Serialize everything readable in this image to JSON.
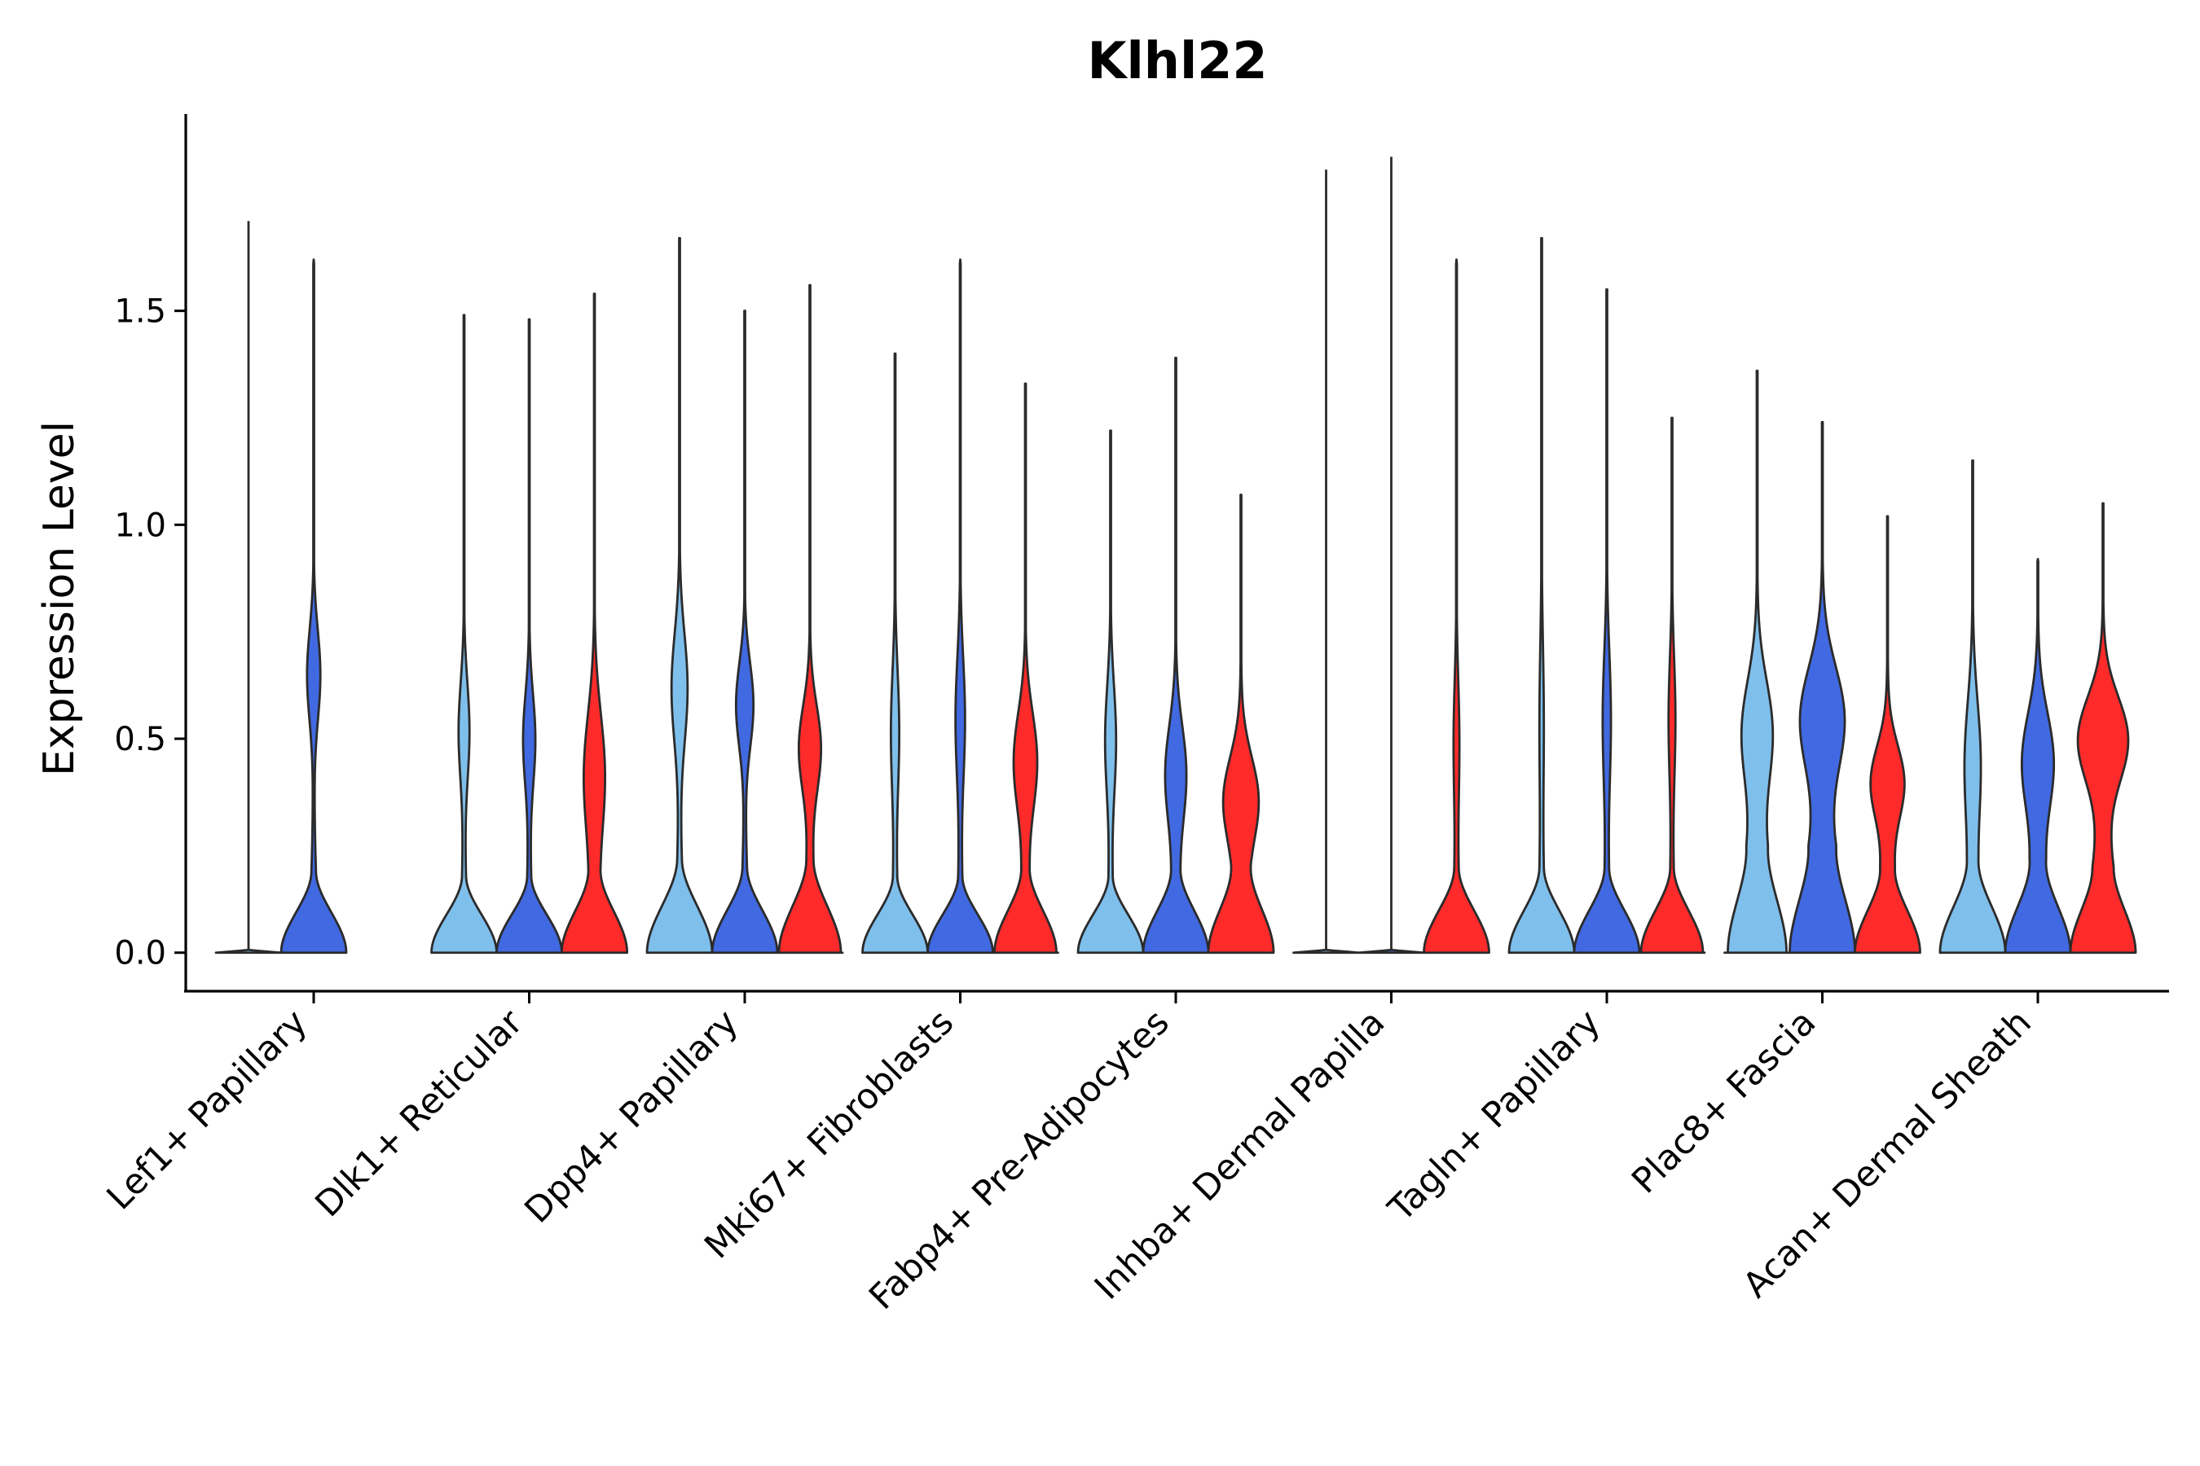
{
  "chart_data": {
    "type": "violin",
    "title": "Klhl22",
    "xlabel": "",
    "ylabel": "Expression Level",
    "ylim": [
      -0.09,
      1.96
    ],
    "yticks": [
      0.0,
      0.5,
      1.0,
      1.5
    ],
    "ytick_labels": [
      "0.0",
      "0.5",
      "1.0",
      "1.5"
    ],
    "colors": {
      "condition_1": "#7fbfec",
      "condition_2": "#4169e1",
      "condition_3": "#ff2a2a",
      "outline": "#2b2b2b"
    },
    "categories": [
      {
        "label": "Lef1+ Papillary",
        "violins": [
          {
            "color": "condition_1",
            "max": 1.71,
            "flat": true
          },
          {
            "color": "condition_2",
            "max": 1.62,
            "base_width": 1.0,
            "neck": 0.07,
            "neck_y": 0.19,
            "upper_width": 0.2,
            "upper_center": 0.65,
            "upper_spread": 0.15
          },
          null
        ]
      },
      {
        "label": "Dlk1+ Reticular",
        "violins": [
          {
            "color": "condition_1",
            "max": 1.49,
            "base_width": 1.0,
            "neck": 0.06,
            "neck_y": 0.18,
            "upper_width": 0.16,
            "upper_center": 0.52,
            "upper_spread": 0.16
          },
          {
            "color": "condition_2",
            "max": 1.48,
            "base_width": 1.0,
            "neck": 0.06,
            "neck_y": 0.18,
            "upper_width": 0.18,
            "upper_center": 0.5,
            "upper_spread": 0.15
          },
          {
            "color": "condition_3",
            "max": 1.54,
            "base_width": 1.0,
            "neck": 0.1,
            "neck_y": 0.2,
            "upper_width": 0.3,
            "upper_center": 0.42,
            "upper_spread": 0.2
          }
        ]
      },
      {
        "label": "Dpp4+ Papillary",
        "violins": [
          {
            "color": "condition_1",
            "max": 1.67,
            "base_width": 1.0,
            "neck": 0.07,
            "neck_y": 0.22,
            "upper_width": 0.24,
            "upper_center": 0.62,
            "upper_spread": 0.18
          },
          {
            "color": "condition_2",
            "max": 1.5,
            "base_width": 1.0,
            "neck": 0.07,
            "neck_y": 0.2,
            "upper_width": 0.26,
            "upper_center": 0.58,
            "upper_spread": 0.14
          },
          {
            "color": "condition_3",
            "max": 1.56,
            "base_width": 0.95,
            "neck": 0.1,
            "neck_y": 0.22,
            "upper_width": 0.32,
            "upper_center": 0.48,
            "upper_spread": 0.14
          }
        ]
      },
      {
        "label": "Mki67+ Fibroblasts",
        "violins": [
          {
            "color": "condition_1",
            "max": 1.4,
            "base_width": 1.0,
            "neck": 0.06,
            "neck_y": 0.18,
            "upper_width": 0.12,
            "upper_center": 0.52,
            "upper_spread": 0.2
          },
          {
            "color": "condition_2",
            "max": 1.62,
            "base_width": 1.0,
            "neck": 0.06,
            "neck_y": 0.18,
            "upper_width": 0.14,
            "upper_center": 0.55,
            "upper_spread": 0.2
          },
          {
            "color": "condition_3",
            "max": 1.33,
            "base_width": 0.95,
            "neck": 0.1,
            "neck_y": 0.2,
            "upper_width": 0.34,
            "upper_center": 0.45,
            "upper_spread": 0.16
          }
        ]
      },
      {
        "label": "Fabp4+ Pre-Adipocytes",
        "violins": [
          {
            "color": "condition_1",
            "max": 1.22,
            "base_width": 1.0,
            "neck": 0.06,
            "neck_y": 0.18,
            "upper_width": 0.16,
            "upper_center": 0.5,
            "upper_spread": 0.18
          },
          {
            "color": "condition_2",
            "max": 1.39,
            "base_width": 1.0,
            "neck": 0.1,
            "neck_y": 0.2,
            "upper_width": 0.3,
            "upper_center": 0.42,
            "upper_spread": 0.16
          },
          {
            "color": "condition_3",
            "max": 1.07,
            "base_width": 1.0,
            "neck": 0.15,
            "neck_y": 0.22,
            "upper_width": 0.48,
            "upper_center": 0.36,
            "upper_spread": 0.14
          }
        ]
      },
      {
        "label": "Inhba+ Dermal Papilla",
        "violins": [
          {
            "color": "condition_1",
            "max": 1.83,
            "flat": true
          },
          {
            "color": "condition_2",
            "max": 1.86,
            "flat": true
          },
          {
            "color": "condition_3",
            "max": 1.62,
            "base_width": 1.0,
            "neck": 0.06,
            "neck_y": 0.2,
            "upper_width": 0.08,
            "upper_center": 0.5,
            "upper_spread": 0.2
          }
        ]
      },
      {
        "label": "Tagln+ Papillary",
        "violins": [
          {
            "color": "condition_1",
            "max": 1.67,
            "base_width": 1.0,
            "neck": 0.06,
            "neck_y": 0.2,
            "upper_width": 0.06,
            "upper_center": 0.55,
            "upper_spread": 0.25
          },
          {
            "color": "condition_2",
            "max": 1.55,
            "base_width": 1.0,
            "neck": 0.06,
            "neck_y": 0.2,
            "upper_width": 0.12,
            "upper_center": 0.55,
            "upper_spread": 0.22
          },
          {
            "color": "condition_3",
            "max": 1.25,
            "base_width": 0.95,
            "neck": 0.05,
            "neck_y": 0.2,
            "upper_width": 0.1,
            "upper_center": 0.55,
            "upper_spread": 0.2
          }
        ]
      },
      {
        "label": "Plac8+ Fascia",
        "violins": [
          {
            "color": "condition_1",
            "max": 1.36,
            "base_width": 0.9,
            "neck": 0.3,
            "neck_y": 0.25,
            "upper_width": 0.42,
            "upper_center": 0.52,
            "upper_spread": 0.17
          },
          {
            "color": "condition_2",
            "max": 1.24,
            "base_width": 1.0,
            "neck": 0.4,
            "neck_y": 0.25,
            "upper_width": 0.62,
            "upper_center": 0.55,
            "upper_spread": 0.17
          },
          {
            "color": "condition_3",
            "max": 1.02,
            "base_width": 1.0,
            "neck": 0.2,
            "neck_y": 0.2,
            "upper_width": 0.46,
            "upper_center": 0.4,
            "upper_spread": 0.12
          }
        ]
      },
      {
        "label": "Acan+ Dermal Sheath",
        "violins": [
          {
            "color": "condition_1",
            "max": 1.15,
            "base_width": 1.0,
            "neck": 0.12,
            "neck_y": 0.22,
            "upper_width": 0.22,
            "upper_center": 0.45,
            "upper_spread": 0.2
          },
          {
            "color": "condition_2",
            "max": 0.92,
            "base_width": 1.0,
            "neck": 0.2,
            "neck_y": 0.22,
            "upper_width": 0.44,
            "upper_center": 0.45,
            "upper_spread": 0.16
          },
          {
            "color": "condition_3",
            "max": 1.05,
            "base_width": 1.0,
            "neck": 0.32,
            "neck_y": 0.2,
            "upper_width": 0.72,
            "upper_center": 0.5,
            "upper_spread": 0.14
          }
        ]
      }
    ]
  }
}
